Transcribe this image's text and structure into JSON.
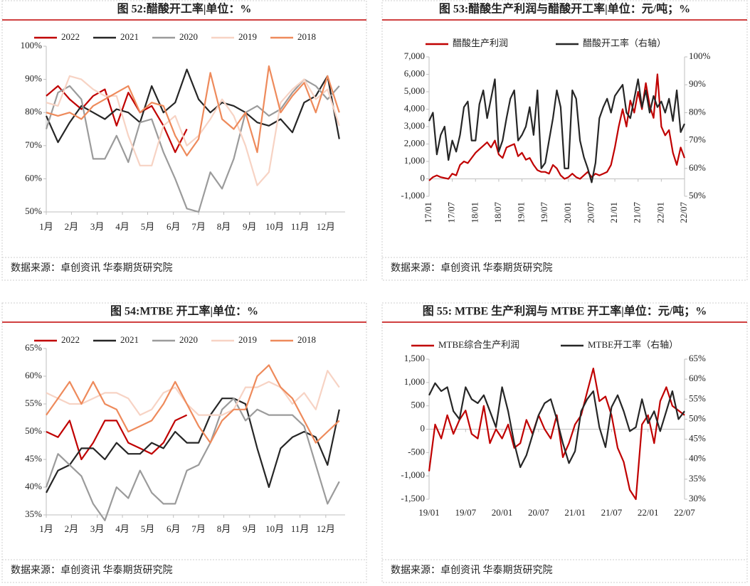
{
  "chart_data": [
    {
      "type": "line",
      "title": "图 52:醋酸开工率|单位：%",
      "source": "数据来源：卓创资讯 华泰期货研究院",
      "x": [
        1,
        3,
        5,
        7,
        9,
        11,
        13,
        15,
        17,
        19,
        21,
        23,
        25,
        27,
        29,
        31,
        33,
        35,
        37,
        39,
        41,
        43,
        45,
        47,
        49,
        51
      ],
      "xlim": [
        1,
        52
      ],
      "xticks": [
        {
          "value": 1,
          "label": "1月"
        },
        {
          "value": 5.3,
          "label": "2月"
        },
        {
          "value": 9.7,
          "label": "3月"
        },
        {
          "value": 14,
          "label": "4月"
        },
        {
          "value": 18.3,
          "label": "5月"
        },
        {
          "value": 22.7,
          "label": "6月"
        },
        {
          "value": 27,
          "label": "7月"
        },
        {
          "value": 31.3,
          "label": "8月"
        },
        {
          "value": 35.7,
          "label": "9月"
        },
        {
          "value": 40,
          "label": "10月"
        },
        {
          "value": 44.3,
          "label": "11月"
        },
        {
          "value": 48.7,
          "label": "12月"
        }
      ],
      "ylim": [
        50,
        100
      ],
      "yticks": [
        {
          "value": 50,
          "label": "50%"
        },
        {
          "value": 60,
          "label": "60%"
        },
        {
          "value": 70,
          "label": "70%"
        },
        {
          "value": 80,
          "label": "80%"
        },
        {
          "value": 90,
          "label": "90%"
        },
        {
          "value": 100,
          "label": "100%"
        }
      ],
      "legend": "top",
      "series": [
        {
          "name": "2022",
          "color": "#c00000",
          "values": [
            85,
            88,
            84,
            81,
            85,
            87,
            76,
            86,
            80,
            82,
            76,
            68,
            75,
            null,
            null,
            null,
            null,
            null,
            null,
            null,
            null,
            null,
            null,
            null,
            null,
            null
          ]
        },
        {
          "name": "2021",
          "color": "#262626",
          "values": [
            79,
            71,
            77,
            82,
            80,
            78,
            81,
            80,
            77,
            88,
            80,
            83,
            93,
            84,
            80,
            83,
            82,
            80,
            77,
            76,
            78,
            74,
            83,
            85,
            91,
            72
          ]
        },
        {
          "name": "2020",
          "color": "#9b9b9b",
          "values": [
            75,
            86,
            88,
            84,
            66,
            66,
            73,
            65,
            77,
            78,
            68,
            60,
            51,
            50,
            62,
            57,
            66,
            80,
            82,
            79,
            81,
            86,
            90,
            88,
            84,
            88
          ]
        },
        {
          "name": "2019",
          "color": "#f7d3c4",
          "values": [
            83,
            82,
            91,
            90,
            87,
            85,
            85,
            73,
            64,
            64,
            76,
            79,
            70,
            73,
            78,
            84,
            79,
            70,
            58,
            62,
            83,
            87,
            90,
            84,
            87,
            76
          ]
        },
        {
          "name": "2018",
          "color": "#ee8a5b",
          "values": [
            80,
            79,
            80,
            78,
            82,
            84,
            86,
            88,
            80,
            83,
            82,
            73,
            67,
            72,
            92,
            78,
            75,
            80,
            68,
            94,
            80,
            85,
            89,
            80,
            91,
            80
          ]
        }
      ]
    },
    {
      "type": "line",
      "title": "图 53:醋酸生产利润与醋酸开工率|单位：元/吨；%",
      "source": "数据来源：卓创资讯 华泰期货研究院",
      "categories": [
        "17/01",
        null,
        null,
        null,
        null,
        null,
        "17/07",
        null,
        null,
        null,
        null,
        null,
        "18/01",
        null,
        null,
        null,
        null,
        null,
        "18/07",
        null,
        null,
        null,
        null,
        null,
        "19/01",
        null,
        null,
        null,
        null,
        null,
        "19/07",
        null,
        null,
        null,
        null,
        null,
        "20/01",
        null,
        null,
        null,
        null,
        null,
        "20/07",
        null,
        null,
        null,
        null,
        null,
        "21/01",
        null,
        null,
        null,
        null,
        null,
        "21/07",
        null,
        null,
        null,
        null,
        null,
        "22/01",
        null,
        null,
        null,
        null,
        null,
        "22/07"
      ],
      "ylim": [
        -1000,
        7000
      ],
      "yticks": [
        {
          "value": -1000,
          "label": "-1,000"
        },
        0,
        {
          "value": 1000,
          "label": "1,000"
        },
        {
          "value": 2000,
          "label": "2,000"
        },
        {
          "value": 3000,
          "label": "3,000"
        },
        {
          "value": 4000,
          "label": "4,000"
        },
        {
          "value": 5000,
          "label": "5,000"
        },
        {
          "value": 6000,
          "label": "6,000"
        },
        {
          "value": 7000,
          "label": "7,000"
        }
      ],
      "y2lim": [
        50,
        100
      ],
      "y2ticks": [
        {
          "value": 50,
          "label": "50%"
        },
        {
          "value": 60,
          "label": "60%"
        },
        {
          "value": 70,
          "label": "70%"
        },
        {
          "value": 80,
          "label": "80%"
        },
        {
          "value": 90,
          "label": "90%"
        },
        {
          "value": 100,
          "label": "100%"
        }
      ],
      "legend": "top",
      "series": [
        {
          "name": "醋酸生产利润",
          "color": "#c00000",
          "values": [
            -100,
            100,
            200,
            100,
            50,
            0,
            300,
            200,
            800,
            1000,
            900,
            1200,
            1500,
            1700,
            1900,
            2100,
            1800,
            2200,
            1400,
            1200,
            1800,
            1900,
            2000,
            1300,
            1500,
            1100,
            1200,
            800,
            500,
            400,
            400,
            300,
            800,
            600,
            200,
            0,
            100,
            300,
            100,
            0,
            200,
            400,
            100,
            300,
            200,
            300,
            400,
            800,
            1800,
            3000,
            4000,
            3000,
            4500,
            3800,
            5000,
            4000,
            5500,
            4200,
            3500,
            6000,
            3000,
            2500,
            2800,
            1500,
            800,
            1800,
            1200
          ]
        },
        {
          "name": "醋酸开工率（右轴）",
          "color": "#262626",
          "axis": "y2",
          "values": [
            77,
            80,
            65,
            72,
            75,
            63,
            70,
            66,
            72,
            82,
            84,
            70,
            70,
            83,
            88,
            78,
            85,
            92,
            66,
            70,
            78,
            85,
            88,
            70,
            72,
            75,
            82,
            72,
            88,
            60,
            62,
            70,
            78,
            88,
            82,
            60,
            60,
            88,
            85,
            70,
            64,
            60,
            55,
            62,
            78,
            82,
            85,
            80,
            86,
            88,
            90,
            80,
            78,
            85,
            92,
            82,
            88,
            80,
            86,
            82,
            84,
            80,
            85,
            77,
            88,
            73,
            76
          ]
        }
      ]
    },
    {
      "type": "line",
      "title": "图 54:MTBE 开工率|单位：%",
      "source": "数据来源：卓创资讯 华泰期货研究院",
      "x": [
        1,
        3,
        5,
        7,
        9,
        11,
        13,
        15,
        17,
        19,
        21,
        23,
        25,
        27,
        29,
        31,
        33,
        35,
        37,
        39,
        41,
        43,
        45,
        47,
        49,
        51
      ],
      "xlim": [
        1,
        52
      ],
      "xticks": [
        {
          "value": 1,
          "label": "1月"
        },
        {
          "value": 5.3,
          "label": "2月"
        },
        {
          "value": 9.7,
          "label": "3月"
        },
        {
          "value": 14,
          "label": "4月"
        },
        {
          "value": 18.3,
          "label": "5月"
        },
        {
          "value": 22.7,
          "label": "6月"
        },
        {
          "value": 27,
          "label": "7月"
        },
        {
          "value": 31.3,
          "label": "8月"
        },
        {
          "value": 35.7,
          "label": "9月"
        },
        {
          "value": 40,
          "label": "10月"
        },
        {
          "value": 44.3,
          "label": "11月"
        },
        {
          "value": 48.7,
          "label": "12月"
        }
      ],
      "ylim": [
        35,
        65
      ],
      "yticks": [
        {
          "value": 35,
          "label": "35%"
        },
        {
          "value": 40,
          "label": "40%"
        },
        {
          "value": 45,
          "label": "45%"
        },
        {
          "value": 50,
          "label": "50%"
        },
        {
          "value": 55,
          "label": "55%"
        },
        {
          "value": 60,
          "label": "60%"
        },
        {
          "value": 65,
          "label": "65%"
        }
      ],
      "legend": "top",
      "series": [
        {
          "name": "2022",
          "color": "#c00000",
          "values": [
            50,
            49,
            52,
            45,
            48,
            52,
            52,
            48,
            47,
            46,
            48,
            52,
            53,
            null,
            null,
            null,
            null,
            null,
            null,
            null,
            null,
            null,
            null,
            null,
            null,
            null
          ]
        },
        {
          "name": "2021",
          "color": "#262626",
          "values": [
            39,
            43,
            44,
            47,
            47,
            45,
            48,
            46,
            46,
            48,
            47,
            50,
            48,
            48,
            53,
            56,
            56,
            55,
            47,
            40,
            47,
            49,
            50,
            49,
            44,
            54
          ]
        },
        {
          "name": "2020",
          "color": "#9b9b9b",
          "values": [
            40,
            46,
            44,
            42,
            37,
            34,
            40,
            38,
            43,
            39,
            37,
            37,
            43,
            44,
            48,
            54,
            56,
            52,
            54,
            53,
            53,
            53,
            51,
            44,
            37,
            41
          ]
        },
        {
          "name": "2019",
          "color": "#f7d3c4",
          "values": [
            57,
            56,
            55,
            55,
            56,
            57,
            57,
            56,
            53,
            54,
            57,
            58,
            55,
            53,
            53,
            53,
            54,
            58,
            58,
            59,
            58,
            55,
            57,
            54,
            61,
            58
          ]
        },
        {
          "name": "2018",
          "color": "#ee8a5b",
          "values": [
            53,
            56,
            59,
            55,
            59,
            55,
            54,
            50,
            51,
            52,
            55,
            59,
            55,
            51,
            48,
            52,
            54,
            54,
            60,
            62,
            58,
            56,
            52,
            48,
            50,
            52
          ]
        }
      ]
    },
    {
      "type": "line",
      "title": "图 55: MTBE 生产利润与 MTBE 开工率|单位：元/吨；%",
      "source": "数据来源：卓创资讯 华泰期货研究院",
      "categories": [
        "19/01",
        null,
        null,
        null,
        null,
        null,
        "19/07",
        null,
        null,
        null,
        null,
        null,
        "20/01",
        null,
        null,
        null,
        null,
        null,
        "20/07",
        null,
        null,
        null,
        null,
        null,
        "21/01",
        null,
        null,
        null,
        null,
        null,
        "21/07",
        null,
        null,
        null,
        null,
        null,
        "22/01",
        null,
        null,
        null,
        null,
        null,
        "22/07"
      ],
      "ylim": [
        -1500,
        1500
      ],
      "yticks": [
        {
          "value": -1500,
          "label": "-1,500"
        },
        {
          "value": -1000,
          "label": "-1,000"
        },
        -500,
        0,
        500,
        {
          "value": 1000,
          "label": "1,000"
        },
        {
          "value": 1500,
          "label": "1,500"
        }
      ],
      "y2lim": [
        30,
        65
      ],
      "y2ticks": [
        {
          "value": 30,
          "label": "30%"
        },
        {
          "value": 35,
          "label": "35%"
        },
        {
          "value": 40,
          "label": "40%"
        },
        {
          "value": 45,
          "label": "45%"
        },
        {
          "value": 50,
          "label": "50%"
        },
        {
          "value": 55,
          "label": "55%"
        },
        {
          "value": 60,
          "label": "60%"
        },
        {
          "value": 65,
          "label": "65%"
        }
      ],
      "legend": "top",
      "series": [
        {
          "name": "MTBE综合生产利润",
          "color": "#c00000",
          "values": [
            -900,
            100,
            -200,
            300,
            -100,
            200,
            400,
            -100,
            -200,
            500,
            -300,
            0,
            -200,
            100,
            -400,
            -300,
            200,
            -100,
            300,
            0,
            -200,
            300,
            -600,
            -300,
            100,
            300,
            800,
            1300,
            600,
            700,
            300,
            -400,
            -700,
            -1300,
            -1500,
            100,
            300,
            -300,
            600,
            900,
            500,
            400,
            300
          ]
        },
        {
          "name": "MTBE开工率（右轴）",
          "color": "#262626",
          "axis": "y2",
          "values": [
            56,
            59,
            57,
            58,
            52,
            50,
            58,
            55,
            54,
            56,
            52,
            48,
            58,
            52,
            44,
            38,
            41,
            46,
            51,
            54,
            55,
            50,
            44,
            39,
            42,
            52,
            55,
            57,
            48,
            43,
            53,
            56,
            52,
            47,
            48,
            55,
            49,
            52,
            47,
            52,
            57,
            50,
            52
          ]
        }
      ]
    }
  ]
}
